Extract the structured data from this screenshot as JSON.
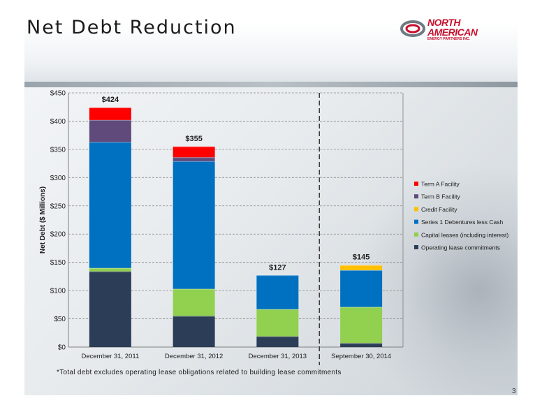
{
  "slide": {
    "title": "Net Debt Reduction",
    "footnote": "*Total debt excludes operating lease obligations related to building lease commitments",
    "page_number": "3",
    "logo": {
      "line1": "NORTH",
      "line2": "AMERICAN",
      "line3": "ENERGY PARTNERS INC.",
      "icon": "swirl-logo-icon"
    }
  },
  "chart_data": {
    "type": "bar",
    "stacked": true,
    "categories": [
      "December 31, 2011",
      "December 31, 2012",
      "December 31, 2013",
      "September 30, 2014"
    ],
    "ylabel": "Net Debt ($ Millions)",
    "xlabel": "",
    "ylim": [
      0,
      450
    ],
    "yticks": [
      "$0",
      "$50",
      "$100",
      "$150",
      "$200",
      "$250",
      "$300",
      "$350",
      "$400",
      "$450"
    ],
    "ytick_values": [
      0,
      50,
      100,
      150,
      200,
      250,
      300,
      350,
      400,
      450
    ],
    "grid": true,
    "legend_position": "right",
    "divider_after_category": 2,
    "totals": [
      "$424",
      "$355",
      "$127",
      "$145"
    ],
    "series": [
      {
        "name": "Operating lease commitments",
        "color": "#2b3d57",
        "values": [
          134,
          55,
          19,
          7
        ]
      },
      {
        "name": "Capital leases (including interest)",
        "color": "#92d050",
        "values": [
          6,
          48,
          48,
          64
        ]
      },
      {
        "name": "Series 1 Debentures less Cash",
        "color": "#0070c0",
        "values": [
          223,
          226,
          60,
          65
        ]
      },
      {
        "name": "Credit Facility",
        "color": "#ffc000",
        "values": [
          0,
          0,
          0,
          9
        ]
      },
      {
        "name": "Term B Facility",
        "color": "#604a7b",
        "values": [
          39,
          7,
          0,
          0
        ]
      },
      {
        "name": "Term A Facility",
        "color": "#ff0000",
        "values": [
          22,
          19,
          0,
          0
        ]
      }
    ]
  }
}
